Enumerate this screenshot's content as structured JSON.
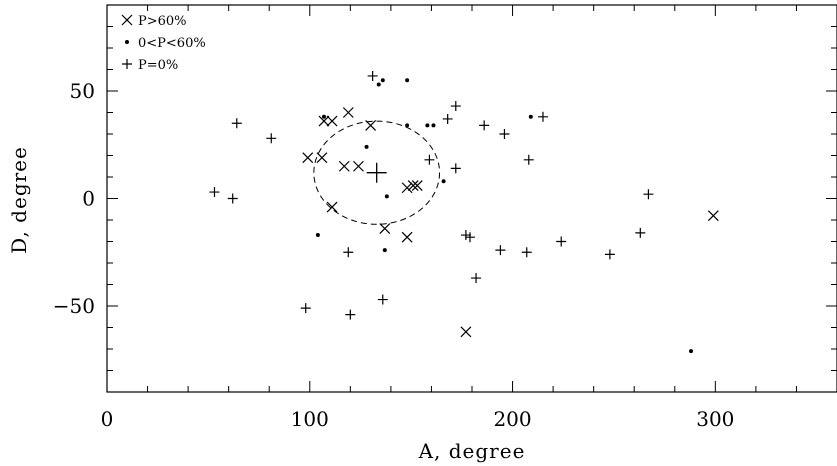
{
  "chart_data": {
    "type": "scatter",
    "title": "",
    "xlabel": "A, degree",
    "ylabel": "D, degree",
    "xlim": [
      0,
      360
    ],
    "ylim": [
      -90,
      90
    ],
    "xticks": [
      0,
      100,
      200,
      300
    ],
    "yticks": [
      -50,
      0,
      50
    ],
    "legend_position": "top-left",
    "grid": false,
    "series": [
      {
        "name": "P>60%",
        "marker": "x",
        "points": [
          [
            99,
            19
          ],
          [
            106,
            19
          ],
          [
            107,
            36
          ],
          [
            111,
            36
          ],
          [
            111,
            -4
          ],
          [
            117,
            15
          ],
          [
            119,
            40
          ],
          [
            124,
            15
          ],
          [
            130,
            34
          ],
          [
            137,
            -14
          ],
          [
            148,
            5
          ],
          [
            148,
            -18
          ],
          [
            151,
            6
          ],
          [
            153,
            6
          ],
          [
            177,
            -62
          ],
          [
            299,
            -8
          ]
        ]
      },
      {
        "name": "0<P<60%",
        "marker": "dot",
        "points": [
          [
            104,
            -17
          ],
          [
            107,
            38
          ],
          [
            128,
            24
          ],
          [
            134,
            53
          ],
          [
            136,
            55
          ],
          [
            137,
            -24
          ],
          [
            138,
            1
          ],
          [
            148,
            55
          ],
          [
            148,
            34
          ],
          [
            158,
            34
          ],
          [
            161,
            34
          ],
          [
            166,
            8
          ],
          [
            209,
            38
          ],
          [
            288,
            -71
          ]
        ]
      },
      {
        "name": "P=0%",
        "marker": "plus",
        "points": [
          [
            53,
            3
          ],
          [
            62,
            0
          ],
          [
            64,
            35
          ],
          [
            81,
            28
          ],
          [
            98,
            -51
          ],
          [
            119,
            -25
          ],
          [
            120,
            -54
          ],
          [
            131,
            57
          ],
          [
            136,
            -47
          ],
          [
            159,
            18
          ],
          [
            168,
            37
          ],
          [
            172,
            43
          ],
          [
            172,
            14
          ],
          [
            177,
            -17
          ],
          [
            179,
            -18
          ],
          [
            182,
            -37
          ],
          [
            186,
            34
          ],
          [
            194,
            -24
          ],
          [
            196,
            30
          ],
          [
            207,
            -25
          ],
          [
            208,
            18
          ],
          [
            215,
            38
          ],
          [
            224,
            -20
          ],
          [
            248,
            -26
          ],
          [
            263,
            -16
          ],
          [
            267,
            2
          ]
        ]
      }
    ],
    "annotations": [
      {
        "type": "dashed-circle",
        "center": [
          133,
          12
        ],
        "radius_x": 31,
        "radius_y": 24,
        "center_marker": "plus"
      }
    ]
  }
}
